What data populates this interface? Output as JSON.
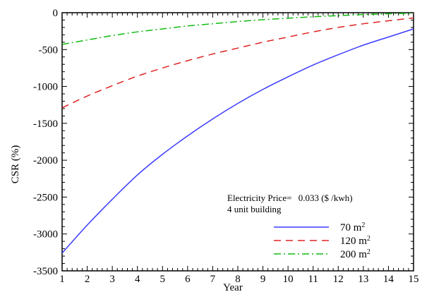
{
  "chart_data": {
    "type": "line",
    "title": "",
    "xlabel": "Year",
    "ylabel": "CSR (%)",
    "xlim": [
      1,
      15
    ],
    "ylim": [
      -3500,
      0
    ],
    "xticks": [
      1,
      2,
      3,
      4,
      5,
      6,
      7,
      8,
      9,
      10,
      11,
      12,
      13,
      14,
      15
    ],
    "yticks": [
      0,
      -500,
      -1000,
      -1500,
      -2000,
      -2500,
      -3000,
      -3500
    ],
    "x": [
      1,
      2,
      3,
      4,
      5,
      6,
      7,
      8,
      9,
      10,
      11,
      12,
      13,
      14,
      15
    ],
    "annotation": {
      "line1_prefix": "Electricity Price=",
      "line1_value": "0.033 ($ /kwh)",
      "line2": "4 unit building"
    },
    "series": [
      {
        "name": "70",
        "unit": "m",
        "sup": "2",
        "color": "#3b3bff",
        "style": "solid",
        "values": [
          -3260,
          -2880,
          -2530,
          -2200,
          -1920,
          -1670,
          -1440,
          -1230,
          -1040,
          -870,
          -710,
          -570,
          -440,
          -330,
          -220
        ]
      },
      {
        "name": "120",
        "unit": "m",
        "sup": "2",
        "color": "#dd2222",
        "style": "dashed",
        "values": [
          -1290,
          -1130,
          -990,
          -860,
          -750,
          -650,
          -560,
          -480,
          -400,
          -330,
          -260,
          -200,
          -150,
          -110,
          -70
        ]
      },
      {
        "name": "200",
        "unit": "m",
        "sup": "2",
        "color": "#11bb11",
        "style": "dashdot",
        "values": [
          -430,
          -370,
          -310,
          -260,
          -220,
          -180,
          -150,
          -120,
          -95,
          -75,
          -55,
          -40,
          -25,
          -15,
          -5
        ]
      }
    ],
    "legend_position": "bottom-right",
    "grid": false
  }
}
